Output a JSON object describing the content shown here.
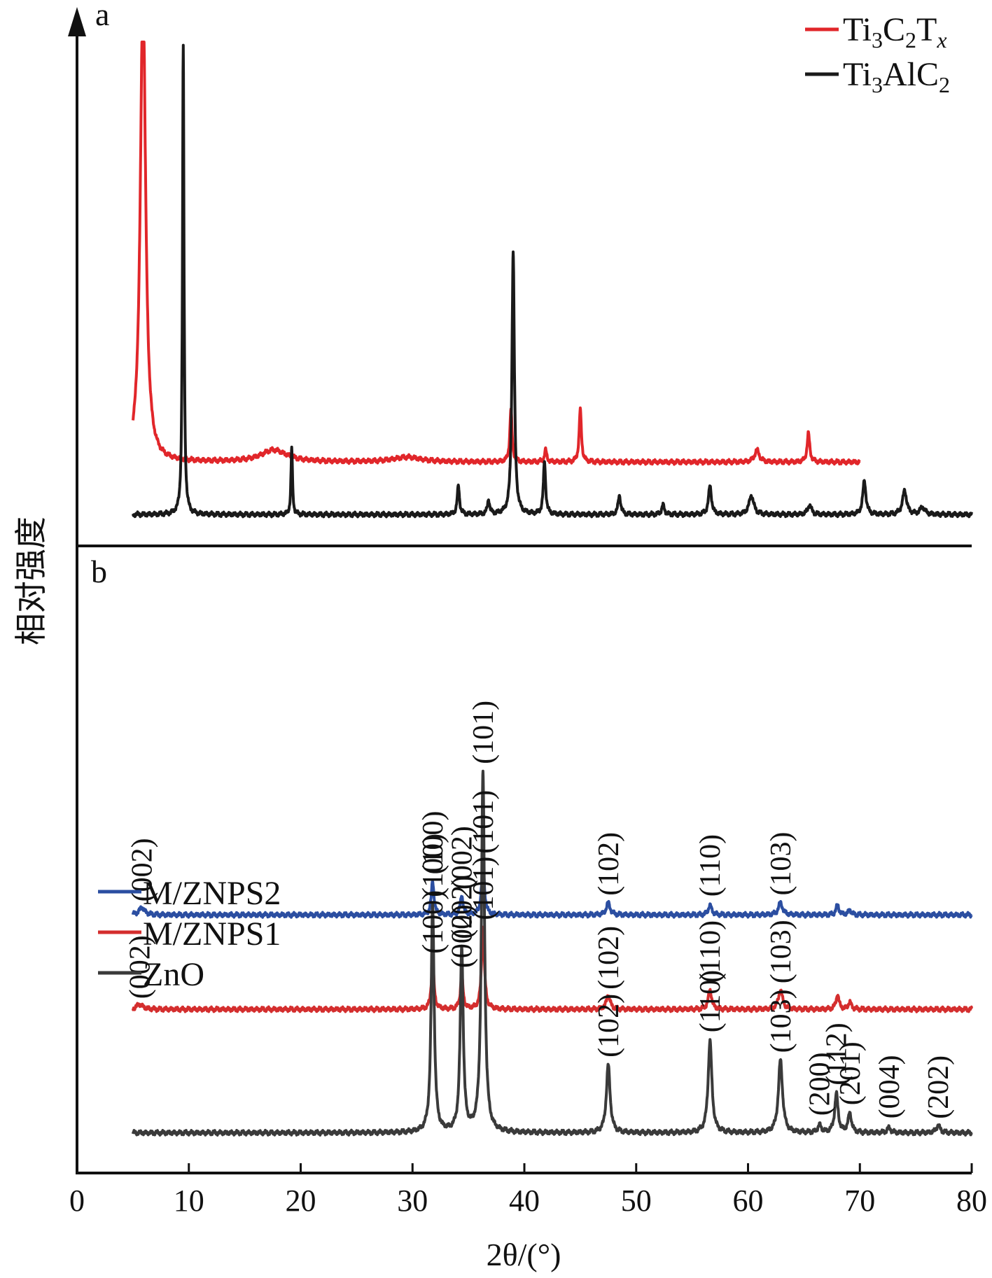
{
  "figure": {
    "ylabel": "相对强度",
    "xlabel": "2θ/(°)",
    "xlim": [
      0,
      80
    ],
    "xticks": [
      0,
      10,
      20,
      30,
      40,
      50,
      60,
      70,
      80
    ]
  },
  "chart_data": [
    {
      "type": "line",
      "panel": "a",
      "title": "",
      "xlabel": "2θ/(°)",
      "ylabel": "相对强度",
      "xlim": [
        0,
        80
      ],
      "grid": false,
      "legend_position": "top-right",
      "series": [
        {
          "name": "Ti3C2Tx",
          "color": "#e1262a",
          "baseline": 12,
          "x_range": [
            5,
            70
          ],
          "peaks": [
            {
              "x": 5.9,
              "y": 100,
              "w": 0.28
            },
            {
              "x": 17.6,
              "y": 2.5,
              "w": 1.4
            },
            {
              "x": 29.5,
              "y": 1,
              "w": 1.5
            },
            {
              "x": 38.8,
              "y": 11,
              "w": 0.12
            },
            {
              "x": 41.9,
              "y": 2.5,
              "w": 0.12
            },
            {
              "x": 45.0,
              "y": 11,
              "w": 0.12
            },
            {
              "x": 60.8,
              "y": 2.5,
              "w": 0.25
            },
            {
              "x": 65.4,
              "y": 6,
              "w": 0.14
            }
          ]
        },
        {
          "name": "Ti3AlC2",
          "color": "#1a1a1a",
          "baseline": 1,
          "x_range": [
            5,
            80
          ],
          "peaks": [
            {
              "x": 9.5,
              "y": 98,
              "w": 0.08
            },
            {
              "x": 19.2,
              "y": 14,
              "w": 0.08
            },
            {
              "x": 34.1,
              "y": 6,
              "w": 0.12
            },
            {
              "x": 36.8,
              "y": 3,
              "w": 0.12
            },
            {
              "x": 39.0,
              "y": 55,
              "w": 0.13
            },
            {
              "x": 41.8,
              "y": 11,
              "w": 0.12
            },
            {
              "x": 48.5,
              "y": 4,
              "w": 0.14
            },
            {
              "x": 52.4,
              "y": 2,
              "w": 0.14
            },
            {
              "x": 56.6,
              "y": 6,
              "w": 0.16
            },
            {
              "x": 60.3,
              "y": 4,
              "w": 0.25
            },
            {
              "x": 65.5,
              "y": 2,
              "w": 0.2
            },
            {
              "x": 70.4,
              "y": 7,
              "w": 0.17
            },
            {
              "x": 74.0,
              "y": 5,
              "w": 0.22
            },
            {
              "x": 75.6,
              "y": 1.5,
              "w": 0.25
            }
          ]
        }
      ]
    },
    {
      "type": "line",
      "panel": "b",
      "title": "",
      "xlabel": "2θ/(°)",
      "ylabel": "相对强度",
      "xlim": [
        0,
        80
      ],
      "grid": false,
      "legend_position": "center-left",
      "series": [
        {
          "name": "M/ZNPS2",
          "color": "#2b4ea1",
          "baseline": 45.5,
          "x_range": [
            5,
            80
          ],
          "peaks": [
            {
              "x": 5.8,
              "y": 1.5,
              "w": 0.3
            },
            {
              "x": 31.8,
              "y": 7,
              "w": 0.14
            },
            {
              "x": 34.4,
              "y": 4,
              "w": 0.14
            },
            {
              "x": 36.3,
              "y": 11,
              "w": 0.15
            },
            {
              "x": 47.5,
              "y": 2.5,
              "w": 0.2
            },
            {
              "x": 56.6,
              "y": 2,
              "w": 0.18
            },
            {
              "x": 62.9,
              "y": 2.5,
              "w": 0.22
            },
            {
              "x": 68.0,
              "y": 2,
              "w": 0.16
            },
            {
              "x": 69.1,
              "y": 1,
              "w": 0.16
            }
          ]
        },
        {
          "name": "M/ZNPS1",
          "color": "#d42e2e",
          "baseline": 26,
          "x_range": [
            5,
            80
          ],
          "peaks": [
            {
              "x": 5.6,
              "y": 1,
              "w": 0.35
            },
            {
              "x": 31.8,
              "y": 10,
              "w": 0.14
            },
            {
              "x": 34.4,
              "y": 7,
              "w": 0.14
            },
            {
              "x": 36.3,
              "y": 17,
              "w": 0.15
            },
            {
              "x": 47.5,
              "y": 3,
              "w": 0.2
            },
            {
              "x": 56.6,
              "y": 4,
              "w": 0.18
            },
            {
              "x": 62.9,
              "y": 4,
              "w": 0.22
            },
            {
              "x": 68.0,
              "y": 3,
              "w": 0.16
            },
            {
              "x": 69.1,
              "y": 1.5,
              "w": 0.16
            }
          ]
        },
        {
          "name": "ZnO",
          "color": "#3a3a3a",
          "baseline": 0.5,
          "x_range": [
            5,
            80
          ],
          "peaks": [
            {
              "x": 31.8,
              "y": 47,
              "w": 0.16
            },
            {
              "x": 34.4,
              "y": 38,
              "w": 0.16
            },
            {
              "x": 36.3,
              "y": 74,
              "w": 0.17
            },
            {
              "x": 47.5,
              "y": 14,
              "w": 0.2
            },
            {
              "x": 56.6,
              "y": 19,
              "w": 0.2
            },
            {
              "x": 62.9,
              "y": 15,
              "w": 0.22
            },
            {
              "x": 66.4,
              "y": 1.5,
              "w": 0.18
            },
            {
              "x": 67.9,
              "y": 8,
              "w": 0.18
            },
            {
              "x": 69.1,
              "y": 4,
              "w": 0.18
            },
            {
              "x": 72.6,
              "y": 1,
              "w": 0.2
            },
            {
              "x": 77.0,
              "y": 1.5,
              "w": 0.22
            }
          ]
        }
      ],
      "peak_labels": [
        {
          "text": "(002)",
          "series": "M/ZNPS2",
          "x": 5.8
        },
        {
          "text": "(100)",
          "series": "M/ZNPS2",
          "x": 31.8
        },
        {
          "text": "(002)",
          "series": "M/ZNPS2",
          "x": 34.4
        },
        {
          "text": "(101)",
          "series": "M/ZNPS2",
          "x": 36.3
        },
        {
          "text": "(102)",
          "series": "M/ZNPS2",
          "x": 47.5
        },
        {
          "text": "(110)",
          "series": "M/ZNPS2",
          "x": 56.6
        },
        {
          "text": "(103)",
          "series": "M/ZNPS2",
          "x": 62.9
        },
        {
          "text": "(002)",
          "series": "M/ZNPS1",
          "x": 5.6
        },
        {
          "text": "(100)",
          "series": "M/ZNPS1",
          "x": 31.8
        },
        {
          "text": "(002)",
          "series": "M/ZNPS1",
          "x": 34.4
        },
        {
          "text": "(101)",
          "series": "M/ZNPS1",
          "x": 36.3
        },
        {
          "text": "(102)",
          "series": "M/ZNPS1",
          "x": 47.5
        },
        {
          "text": "(110)",
          "series": "M/ZNPS1",
          "x": 56.6
        },
        {
          "text": "(103)",
          "series": "M/ZNPS1",
          "x": 62.9
        },
        {
          "text": "(100)",
          "series": "ZnO",
          "x": 31.8
        },
        {
          "text": "(002)",
          "series": "ZnO",
          "x": 34.4
        },
        {
          "text": "(101)",
          "series": "ZnO",
          "x": 36.3
        },
        {
          "text": "(102)",
          "series": "ZnO",
          "x": 47.5
        },
        {
          "text": "(110)",
          "series": "ZnO",
          "x": 56.6
        },
        {
          "text": "(103)",
          "series": "ZnO",
          "x": 62.9
        },
        {
          "text": "(200)",
          "series": "ZnO",
          "x": 66.4
        },
        {
          "text": "(112)",
          "series": "ZnO",
          "x": 67.9
        },
        {
          "text": "(201)",
          "series": "ZnO",
          "x": 69.1
        },
        {
          "text": "(004)",
          "series": "ZnO",
          "x": 72.6
        },
        {
          "text": "(202)",
          "series": "ZnO",
          "x": 77.0
        }
      ]
    }
  ]
}
